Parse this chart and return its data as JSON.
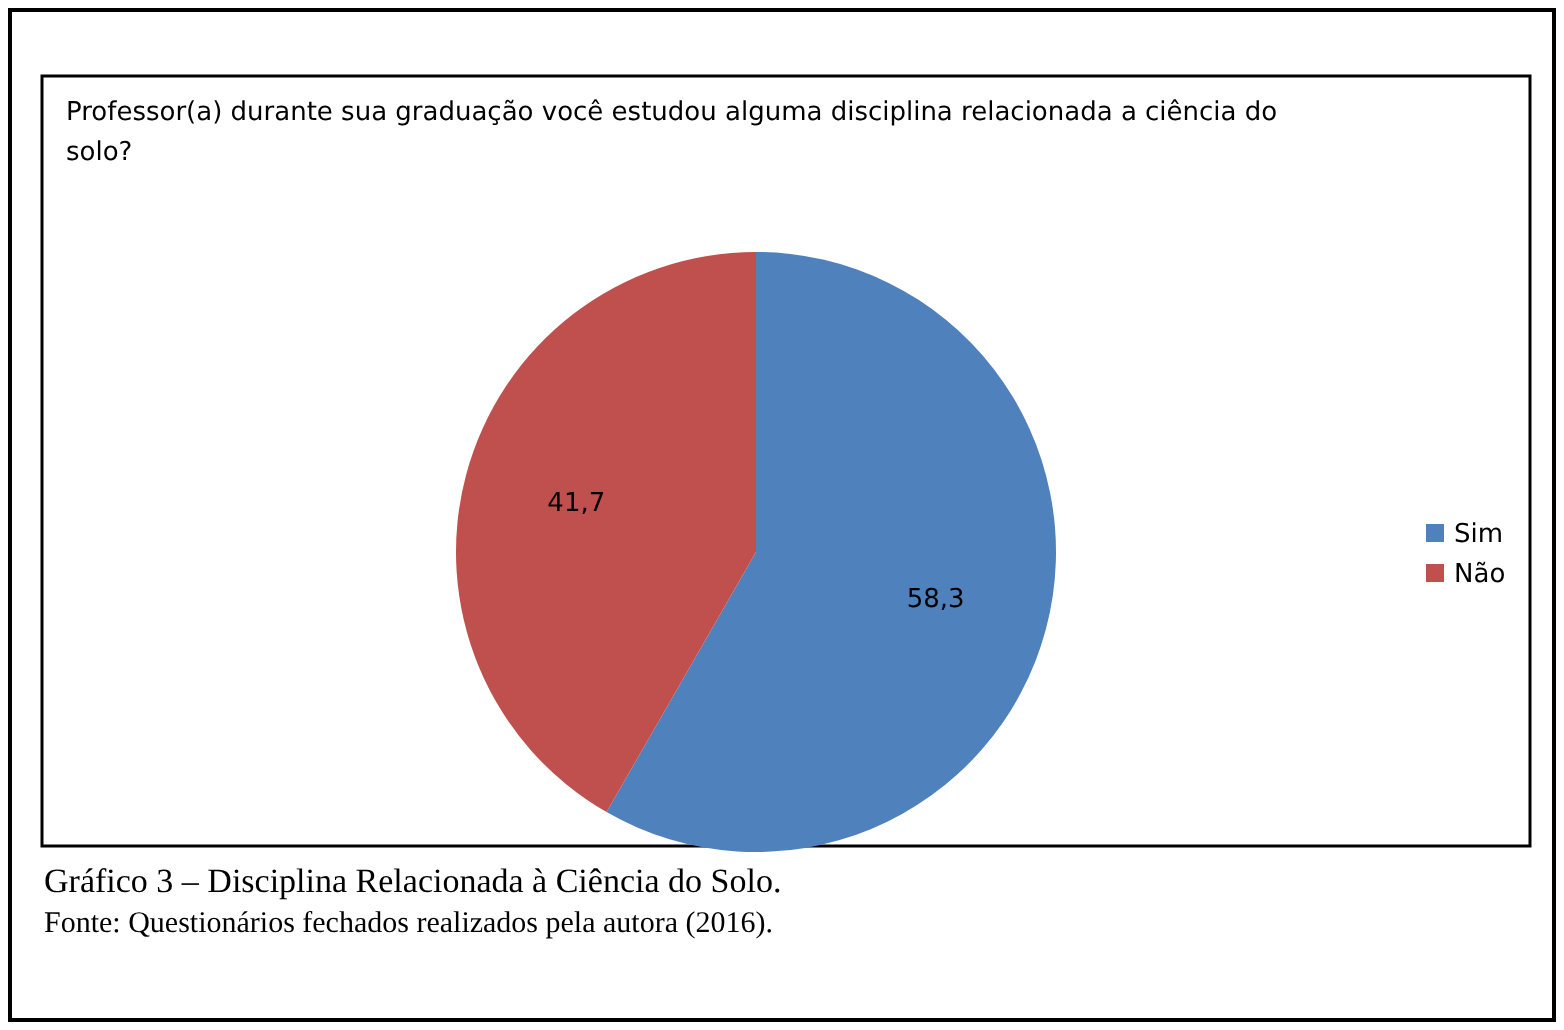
{
  "chart_data": {
    "type": "pie",
    "title": "Professor(a)  durante sua graduação você estudou alguma disciplina relacionada a ciência do solo?",
    "categories": [
      "Sim",
      "Não"
    ],
    "values": [
      58.3,
      41.7
    ],
    "colors": [
      "#4f81bd",
      "#c0504d"
    ],
    "value_labels": [
      "58,3",
      "41,7"
    ],
    "legend": "right",
    "annotations": [
      "Gráfico 3 – Disciplina Relacionada à Ciência do Solo.",
      "Fonte: Questionários fechados realizados pela autora (2016)."
    ]
  }
}
